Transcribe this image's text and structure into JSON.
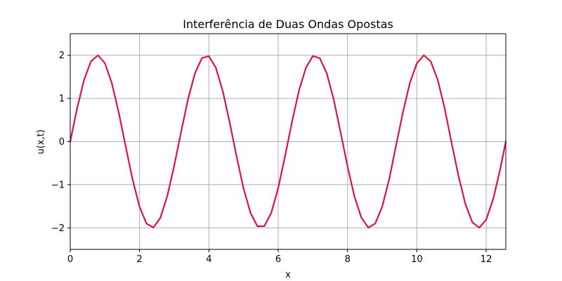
{
  "chart_data": {
    "type": "line",
    "title": "Interferência de Duas Ondas Opostas",
    "xlabel": "x",
    "ylabel": "u(x,t)",
    "xlim": [
      0,
      12.566
    ],
    "ylim": [
      -2.5,
      2.5
    ],
    "xticks": [
      0,
      2,
      4,
      6,
      8,
      10,
      12
    ],
    "yticks": [
      -2,
      -1,
      0,
      1,
      2
    ],
    "xtick_labels": [
      "0",
      "2",
      "4",
      "6",
      "8",
      "10",
      "12"
    ],
    "ytick_labels": [
      "−2",
      "−1",
      "0",
      "1",
      "2"
    ],
    "grid": true,
    "series": [
      {
        "color": "#dc143c",
        "x": [
          0,
          0.2,
          0.4,
          0.6,
          0.8,
          1.0,
          1.2,
          1.4,
          1.6,
          1.8,
          2.0,
          2.2,
          2.4,
          2.6,
          2.8,
          3.0,
          3.2,
          3.4,
          3.6,
          3.8,
          4.0,
          4.2,
          4.4,
          4.6,
          4.8,
          5.0,
          5.2,
          5.4,
          5.6,
          5.8,
          6.0,
          6.2,
          6.4,
          6.6,
          6.8,
          7.0,
          7.2,
          7.4,
          7.6,
          7.8,
          8.0,
          8.2,
          8.4,
          8.6,
          8.8,
          9.0,
          9.2,
          9.4,
          9.6,
          9.8,
          10.0,
          10.2,
          10.4,
          10.6,
          10.8,
          11.0,
          11.2,
          11.4,
          11.6,
          11.8,
          12.0,
          12.2,
          12.4,
          12.566
        ],
        "y": [
          0,
          0.779,
          1.435,
          1.864,
          1.998,
          1.819,
          1.351,
          0.67,
          -0.117,
          -0.885,
          -1.514,
          -1.903,
          -1.993,
          -1.77,
          -1.263,
          -0.558,
          0.233,
          0.988,
          1.587,
          1.937,
          1.979,
          1.714,
          1.172,
          0.444,
          -0.349,
          -1.088,
          -1.653,
          -1.964,
          -1.96,
          -1.652,
          -1.077,
          -0.328,
          0.463,
          1.185,
          1.713,
          1.983,
          1.933,
          1.585,
          0.979,
          0.211,
          -0.575,
          -1.277,
          -1.767,
          -1.996,
          -1.899,
          -1.513,
          -0.879,
          -0.094,
          0.685,
          1.364,
          1.814,
          2.0,
          1.859,
          1.436,
          0.777,
          -0.024,
          -0.792,
          -1.447,
          -1.871,
          -1.998,
          -1.812,
          -1.338,
          -0.66,
          0
        ]
      }
    ]
  }
}
